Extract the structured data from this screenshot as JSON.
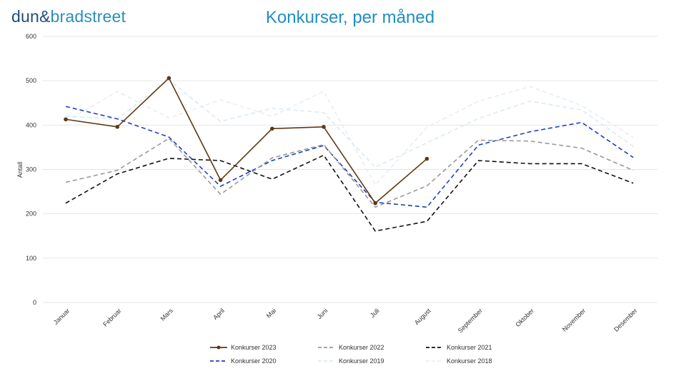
{
  "brand": {
    "part1": "dun",
    "amp": "&",
    "part2": "bradstreet"
  },
  "chart_data": {
    "type": "line",
    "title": "Konkurser, per måned",
    "xlabel": "",
    "ylabel": "Antall",
    "ylim": [
      0,
      600
    ],
    "yticks": [
      0,
      100,
      200,
      300,
      400,
      500,
      600
    ],
    "grid": true,
    "legend_position": "bottom",
    "categories": [
      "Januar",
      "Februar",
      "Mars",
      "April",
      "Mai",
      "Juni",
      "Juli",
      "August",
      "September",
      "Oktober",
      "November",
      "Desember"
    ],
    "series": [
      {
        "name": "Konkurser 2023",
        "color": "#5b3a14",
        "dash": "solid",
        "markers": true,
        "values": [
          413,
          396,
          506,
          276,
          392,
          396,
          224,
          324,
          null,
          null,
          null,
          null
        ]
      },
      {
        "name": "Konkurser 2022",
        "color": "#9a9a9a",
        "dash": "dashed",
        "markers": false,
        "values": [
          271,
          298,
          370,
          244,
          326,
          356,
          215,
          263,
          366,
          364,
          348,
          298
        ]
      },
      {
        "name": "Konkurser 2021",
        "color": "#111111",
        "dash": "dashed",
        "markers": false,
        "values": [
          224,
          290,
          325,
          320,
          278,
          332,
          161,
          183,
          320,
          313,
          313,
          269
        ]
      },
      {
        "name": "Konkurser 2020",
        "color": "#1f3fbf",
        "dash": "dashed",
        "markers": false,
        "values": [
          442,
          414,
          373,
          262,
          320,
          354,
          226,
          215,
          355,
          385,
          406,
          327
        ]
      },
      {
        "name": "Konkurser 2019",
        "color": "#dceaf2",
        "dash": "dashed",
        "markers": false,
        "values": [
          420,
          414,
          502,
          408,
          438,
          428,
          305,
          360,
          415,
          454,
          434,
          352
        ]
      },
      {
        "name": "Konkurser 2018",
        "color": "#e6eff5",
        "dash": "dashed",
        "markers": false,
        "values": [
          408,
          476,
          416,
          457,
          420,
          476,
          265,
          395,
          454,
          487,
          444,
          372
        ]
      }
    ]
  }
}
